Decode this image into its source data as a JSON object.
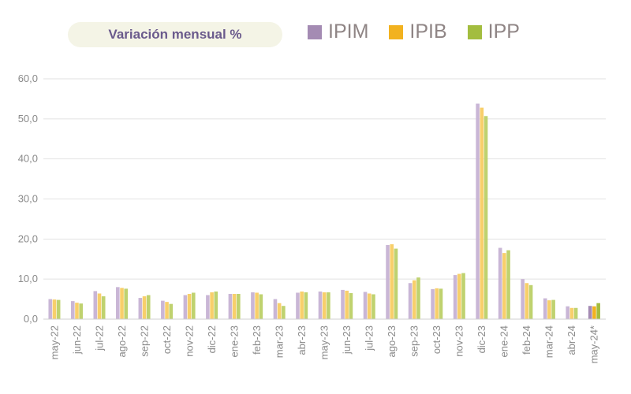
{
  "chart_data": {
    "type": "bar",
    "title": "Variación mensual %",
    "categories": [
      "may-22",
      "jun-22",
      "jul-22",
      "ago-22",
      "sep-22",
      "oct-22",
      "nov-22",
      "dic-22",
      "ene-23",
      "feb-23",
      "mar-23",
      "abr-23",
      "may-23",
      "jun-23",
      "jul-23",
      "ago-23",
      "sep-23",
      "oct-23",
      "nov-23",
      "dic-23",
      "ene-24",
      "feb-24",
      "mar-24",
      "abr-24",
      "may-24*"
    ],
    "series": [
      {
        "name": "IPIM",
        "color": "#a48bb3",
        "values": [
          5.0,
          4.5,
          7.0,
          8.0,
          5.3,
          4.6,
          6.0,
          6.0,
          6.3,
          6.7,
          5.0,
          6.6,
          6.9,
          7.3,
          6.8,
          18.5,
          9.0,
          7.5,
          11.0,
          53.8,
          17.8,
          10.0,
          5.2,
          3.2,
          3.3
        ]
      },
      {
        "name": "IPIB",
        "color": "#f2b21f",
        "values": [
          4.9,
          4.1,
          6.4,
          7.8,
          5.7,
          4.3,
          6.3,
          6.7,
          6.3,
          6.6,
          4.0,
          6.9,
          6.7,
          7.1,
          6.4,
          18.7,
          9.7,
          7.7,
          11.3,
          52.8,
          16.5,
          9.0,
          4.7,
          2.8,
          3.2
        ]
      },
      {
        "name": "IPP",
        "color": "#a3bd3f",
        "values": [
          4.8,
          3.9,
          5.7,
          7.6,
          6.0,
          3.8,
          6.6,
          6.9,
          6.3,
          6.2,
          3.3,
          6.7,
          6.7,
          6.5,
          6.2,
          17.6,
          10.4,
          7.6,
          11.5,
          50.7,
          17.2,
          8.5,
          4.8,
          2.8,
          4.0
        ]
      }
    ],
    "ylim": [
      0,
      60
    ],
    "yticks": [
      0,
      10,
      20,
      30,
      40,
      50,
      60
    ],
    "ytick_labels": [
      "0,0",
      "10,0",
      "20,0",
      "30,0",
      "40,0",
      "50,0",
      "60,0"
    ],
    "grid": true,
    "legend_position": "top"
  }
}
